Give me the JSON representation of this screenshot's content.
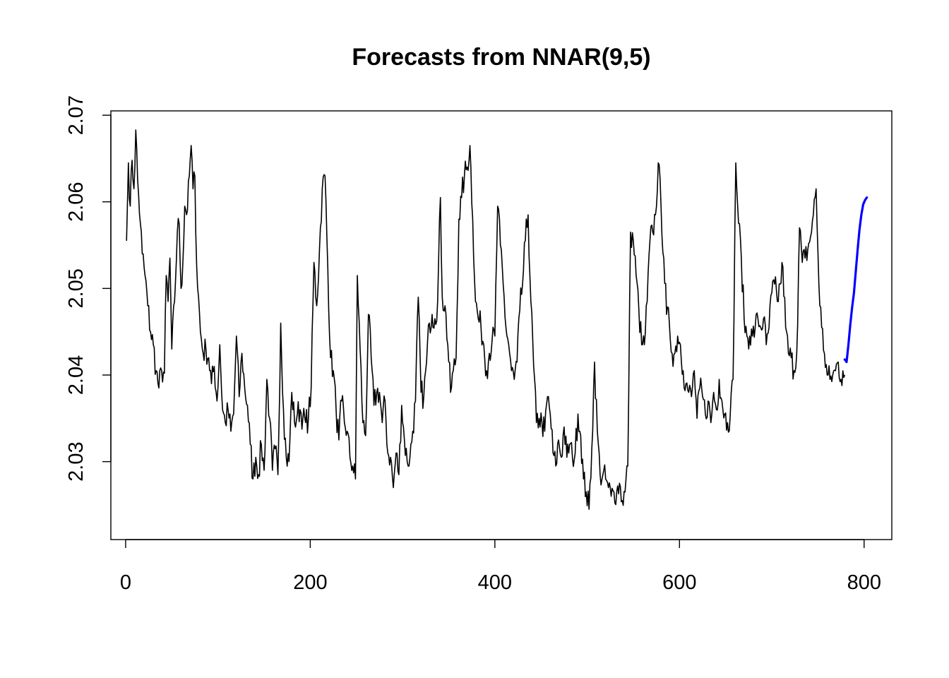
{
  "chart_data": {
    "type": "line",
    "title": "Forecasts from NNAR(9,5)",
    "xlabel": "",
    "ylabel": "",
    "xlim": [
      -16,
      830
    ],
    "ylim": [
      2.021,
      2.0705
    ],
    "x_ticks": [
      0,
      200,
      400,
      600,
      800
    ],
    "x_tick_labels": [
      "0",
      "200",
      "400",
      "600",
      "800"
    ],
    "y_ticks": [
      2.03,
      2.04,
      2.05,
      2.06,
      2.07
    ],
    "y_tick_labels": [
      "2.03",
      "2.04",
      "2.05",
      "2.06",
      "2.07"
    ],
    "grid": false,
    "legend": "none",
    "series": [
      {
        "role": "observed",
        "color": "#000000",
        "x_start": 1,
        "x_step": 1,
        "anchors": [
          [
            1,
            2.0555
          ],
          [
            3,
            2.0645
          ],
          [
            5,
            2.0595
          ],
          [
            7,
            2.0648
          ],
          [
            9,
            2.0615
          ],
          [
            11,
            2.0683
          ],
          [
            13,
            2.0625
          ],
          [
            16,
            2.0575
          ],
          [
            18,
            2.054
          ],
          [
            21,
            2.0515
          ],
          [
            24,
            2.048
          ],
          [
            27,
            2.045
          ],
          [
            30,
            2.0435
          ],
          [
            33,
            2.0405
          ],
          [
            36,
            2.0385
          ],
          [
            39,
            2.0405
          ],
          [
            42,
            2.0402
          ],
          [
            44,
            2.0515
          ],
          [
            46,
            2.0485
          ],
          [
            48,
            2.0535
          ],
          [
            50,
            2.043
          ],
          [
            53,
            2.0485
          ],
          [
            56,
            2.0565
          ],
          [
            58,
            2.0575
          ],
          [
            60,
            2.05
          ],
          [
            62,
            2.053
          ],
          [
            64,
            2.0595
          ],
          [
            67,
            2.059
          ],
          [
            69,
            2.063
          ],
          [
            71,
            2.0665
          ],
          [
            73,
            2.0615
          ],
          [
            75,
            2.063
          ],
          [
            77,
            2.0525
          ],
          [
            79,
            2.049
          ],
          [
            81,
            2.045
          ],
          [
            84,
            2.0425
          ],
          [
            87,
            2.043
          ],
          [
            90,
            2.042
          ],
          [
            93,
            2.039
          ],
          [
            96,
            2.041
          ],
          [
            99,
            2.037
          ],
          [
            102,
            2.0435
          ],
          [
            105,
            2.036
          ],
          [
            108,
            2.0345
          ],
          [
            111,
            2.036
          ],
          [
            114,
            2.0335
          ],
          [
            117,
            2.0355
          ],
          [
            120,
            2.0445
          ],
          [
            123,
            2.0375
          ],
          [
            126,
            2.0425
          ],
          [
            129,
            2.0385
          ],
          [
            132,
            2.0365
          ],
          [
            135,
            2.032
          ],
          [
            138,
            2.028
          ],
          [
            141,
            2.0305
          ],
          [
            144,
            2.0285
          ],
          [
            147,
            2.032
          ],
          [
            150,
            2.029
          ],
          [
            153,
            2.0395
          ],
          [
            156,
            2.035
          ],
          [
            159,
            2.029
          ],
          [
            162,
            2.0315
          ],
          [
            165,
            2.0285
          ],
          [
            168,
            2.046
          ],
          [
            171,
            2.036
          ],
          [
            174,
            2.0305
          ],
          [
            177,
            2.03
          ],
          [
            180,
            2.038
          ],
          [
            183,
            2.0345
          ],
          [
            186,
            2.0355
          ],
          [
            189,
            2.036
          ],
          [
            192,
            2.035
          ],
          [
            195,
            2.0345
          ],
          [
            198,
            2.035
          ],
          [
            201,
            2.0385
          ],
          [
            204,
            2.053
          ],
          [
            207,
            2.048
          ],
          [
            210,
            2.0545
          ],
          [
            213,
            2.0615
          ],
          [
            216,
            2.063
          ],
          [
            219,
            2.0525
          ],
          [
            222,
            2.042
          ],
          [
            225,
            2.0405
          ],
          [
            228,
            2.036
          ],
          [
            231,
            2.0325
          ],
          [
            234,
            2.037
          ],
          [
            237,
            2.0345
          ],
          [
            240,
            2.0335
          ],
          [
            243,
            2.0305
          ],
          [
            246,
            2.0295
          ],
          [
            249,
            2.028
          ],
          [
            251,
            2.0515
          ],
          [
            254,
            2.043
          ],
          [
            257,
            2.0345
          ],
          [
            260,
            2.033
          ],
          [
            263,
            2.047
          ],
          [
            266,
            2.042
          ],
          [
            269,
            2.0365
          ],
          [
            272,
            2.038
          ],
          [
            275,
            2.038
          ],
          [
            278,
            2.0345
          ],
          [
            281,
            2.037
          ],
          [
            284,
            2.031
          ],
          [
            287,
            2.0305
          ],
          [
            290,
            2.027
          ],
          [
            293,
            2.031
          ],
          [
            296,
            2.0285
          ],
          [
            299,
            2.0365
          ],
          [
            302,
            2.0325
          ],
          [
            305,
            2.03
          ],
          [
            308,
            2.0305
          ],
          [
            311,
            2.0335
          ],
          [
            314,
            2.037
          ],
          [
            317,
            2.049
          ],
          [
            320,
            2.038
          ],
          [
            323,
            2.0375
          ],
          [
            326,
            2.0415
          ],
          [
            329,
            2.046
          ],
          [
            332,
            2.047
          ],
          [
            335,
            2.0465
          ],
          [
            338,
            2.0485
          ],
          [
            341,
            2.0605
          ],
          [
            343,
            2.049
          ],
          [
            346,
            2.048
          ],
          [
            349,
            2.0435
          ],
          [
            352,
            2.038
          ],
          [
            355,
            2.0405
          ],
          [
            358,
            2.042
          ],
          [
            361,
            2.058
          ],
          [
            364,
            2.0605
          ],
          [
            367,
            2.063
          ],
          [
            370,
            2.064
          ],
          [
            373,
            2.0665
          ],
          [
            376,
            2.058
          ],
          [
            379,
            2.0485
          ],
          [
            382,
            2.0465
          ],
          [
            385,
            2.0455
          ],
          [
            388,
            2.0435
          ],
          [
            391,
            2.0405
          ],
          [
            394,
            2.0425
          ],
          [
            397,
            2.044
          ],
          [
            400,
            2.0445
          ],
          [
            403,
            2.0595
          ],
          [
            406,
            2.055
          ],
          [
            409,
            2.0505
          ],
          [
            412,
            2.0455
          ],
          [
            415,
            2.0435
          ],
          [
            418,
            2.0405
          ],
          [
            421,
            2.0395
          ],
          [
            424,
            2.0415
          ],
          [
            427,
            2.0475
          ],
          [
            430,
            2.0505
          ],
          [
            433,
            2.0555
          ],
          [
            436,
            2.0585
          ],
          [
            439,
            2.0485
          ],
          [
            442,
            2.041
          ],
          [
            445,
            2.0345
          ],
          [
            448,
            2.035
          ],
          [
            451,
            2.0345
          ],
          [
            454,
            2.0335
          ],
          [
            457,
            2.0375
          ],
          [
            460,
            2.0355
          ],
          [
            463,
            2.031
          ],
          [
            466,
            2.0295
          ],
          [
            469,
            2.0325
          ],
          [
            472,
            2.0305
          ],
          [
            475,
            2.034
          ],
          [
            478,
            2.0305
          ],
          [
            481,
            2.032
          ],
          [
            484,
            2.0305
          ],
          [
            487,
            2.031
          ],
          [
            490,
            2.0355
          ],
          [
            493,
            2.033
          ],
          [
            496,
            2.028
          ],
          [
            499,
            2.0265
          ],
          [
            502,
            2.0245
          ],
          [
            505,
            2.0315
          ],
          [
            508,
            2.0415
          ],
          [
            511,
            2.0335
          ],
          [
            514,
            2.0285
          ],
          [
            517,
            2.0285
          ],
          [
            520,
            2.028
          ],
          [
            523,
            2.027
          ],
          [
            526,
            2.026
          ],
          [
            529,
            2.0265
          ],
          [
            532,
            2.0265
          ],
          [
            535,
            2.0275
          ],
          [
            538,
            2.0255
          ],
          [
            541,
            2.0265
          ],
          [
            544,
            2.0295
          ],
          [
            547,
            2.0565
          ],
          [
            550,
            2.0555
          ],
          [
            553,
            2.0515
          ],
          [
            556,
            2.0475
          ],
          [
            559,
            2.0435
          ],
          [
            562,
            2.0435
          ],
          [
            565,
            2.0485
          ],
          [
            568,
            2.0555
          ],
          [
            571,
            2.0565
          ],
          [
            574,
            2.0585
          ],
          [
            577,
            2.0645
          ],
          [
            580,
            2.0595
          ],
          [
            583,
            2.0535
          ],
          [
            586,
            2.047
          ],
          [
            589,
            2.046
          ],
          [
            592,
            2.0425
          ],
          [
            595,
            2.0425
          ],
          [
            598,
            2.0445
          ],
          [
            601,
            2.0435
          ],
          [
            604,
            2.0405
          ],
          [
            607,
            2.039
          ],
          [
            610,
            2.038
          ],
          [
            613,
            2.0375
          ],
          [
            616,
            2.0405
          ],
          [
            619,
            2.035
          ],
          [
            622,
            2.0385
          ],
          [
            625,
            2.0375
          ],
          [
            628,
            2.0355
          ],
          [
            631,
            2.037
          ],
          [
            634,
            2.0345
          ],
          [
            637,
            2.038
          ],
          [
            640,
            2.036
          ],
          [
            643,
            2.0395
          ],
          [
            646,
            2.037
          ],
          [
            649,
            2.0355
          ],
          [
            652,
            2.0345
          ],
          [
            655,
            2.0355
          ],
          [
            658,
            2.0395
          ],
          [
            661,
            2.0645
          ],
          [
            664,
            2.0575
          ],
          [
            667,
            2.0535
          ],
          [
            670,
            2.0465
          ],
          [
            673,
            2.0445
          ],
          [
            676,
            2.0445
          ],
          [
            679,
            2.0445
          ],
          [
            682,
            2.0455
          ],
          [
            685,
            2.0465
          ],
          [
            688,
            2.0455
          ],
          [
            691,
            2.0465
          ],
          [
            694,
            2.0435
          ],
          [
            697,
            2.0455
          ],
          [
            700,
            2.0495
          ],
          [
            703,
            2.0505
          ],
          [
            706,
            2.0485
          ],
          [
            709,
            2.0505
          ],
          [
            712,
            2.0525
          ],
          [
            715,
            2.0455
          ],
          [
            718,
            2.0425
          ],
          [
            721,
            2.042
          ],
          [
            724,
            2.0405
          ],
          [
            727,
            2.0425
          ],
          [
            730,
            2.057
          ],
          [
            733,
            2.053
          ],
          [
            736,
            2.0535
          ],
          [
            739,
            2.0545
          ],
          [
            742,
            2.056
          ],
          [
            745,
            2.0585
          ],
          [
            748,
            2.0615
          ],
          [
            751,
            2.0505
          ],
          [
            754,
            2.0455
          ],
          [
            757,
            2.0425
          ],
          [
            760,
            2.04
          ],
          [
            763,
            2.0395
          ],
          [
            766,
            2.04
          ],
          [
            769,
            2.0405
          ],
          [
            772,
            2.0415
          ],
          [
            775,
            2.0395
          ],
          [
            777,
            2.0405
          ],
          [
            779,
            2.04
          ]
        ]
      },
      {
        "role": "forecast",
        "color": "#0000ff",
        "x": [
          779,
          781,
          783,
          785,
          787,
          789,
          791,
          793,
          795,
          797,
          799,
          801,
          803
        ],
        "y": [
          2.0418,
          2.0415,
          2.0435,
          2.0458,
          2.0478,
          2.0495,
          2.052,
          2.0545,
          2.0568,
          2.0585,
          2.0597,
          2.0602,
          2.0605
        ]
      }
    ]
  }
}
